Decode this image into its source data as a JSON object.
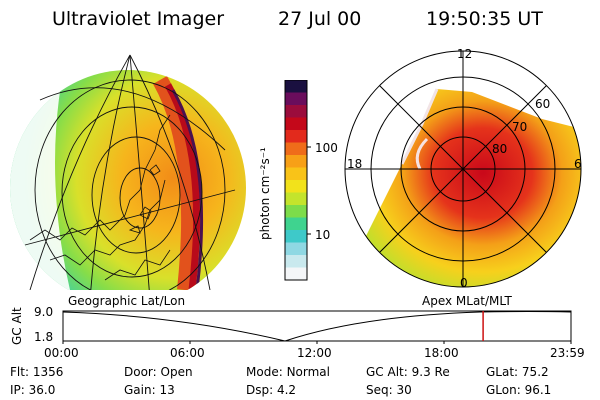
{
  "header": {
    "title": "Ultraviolet Imager",
    "date": "27 Jul 00",
    "time": "19:50:35 UT"
  },
  "colorbar": {
    "unit_label": "photon cm⁻²s⁻¹",
    "ticks": [
      "100",
      "10"
    ],
    "colors": [
      "#f4f6f8",
      "#c9e9ee",
      "#8fd8e3",
      "#3ec9c9",
      "#3fd38f",
      "#7ddc4a",
      "#c4e42c",
      "#f2e21b",
      "#f9c318",
      "#f7a017",
      "#ef6c1a",
      "#e22a1c",
      "#c4081a",
      "#9b0c3c",
      "#6a0d5c",
      "#1a1040"
    ]
  },
  "polar_plot": {
    "mlt_labels": [
      "12",
      "18",
      "6",
      "0"
    ],
    "lat_labels": [
      "60",
      "70",
      "80"
    ]
  },
  "timeline": {
    "left_label": "Geographic Lat/Lon",
    "right_label": "Apex MLat/MLT",
    "axis_title": "GC Alt",
    "y_ticks": [
      "9.0",
      "1.8"
    ],
    "x_ticks": [
      "00:00",
      "06:00",
      "12:00",
      "18:00",
      "23:59"
    ],
    "marker_time": "19:50",
    "marker_color": "#cc1111"
  },
  "info": {
    "row1": [
      {
        "label": "Flt:",
        "value": "1356"
      },
      {
        "label": "Door:",
        "value": "Open"
      },
      {
        "label": "Mode:",
        "value": "Normal"
      },
      {
        "label": "GC Alt:",
        "value": "9.3 Re"
      },
      {
        "label": "GLat:",
        "value": "75.2"
      }
    ],
    "row2": [
      {
        "label": "IP:",
        "value": "36.0"
      },
      {
        "label": "Gain:",
        "value": "13"
      },
      {
        "label": "Dsp:",
        "value": "4.2"
      },
      {
        "label": "Seq:",
        "value": "30"
      },
      {
        "label": "GLon:",
        "value": "96.1"
      }
    ]
  }
}
